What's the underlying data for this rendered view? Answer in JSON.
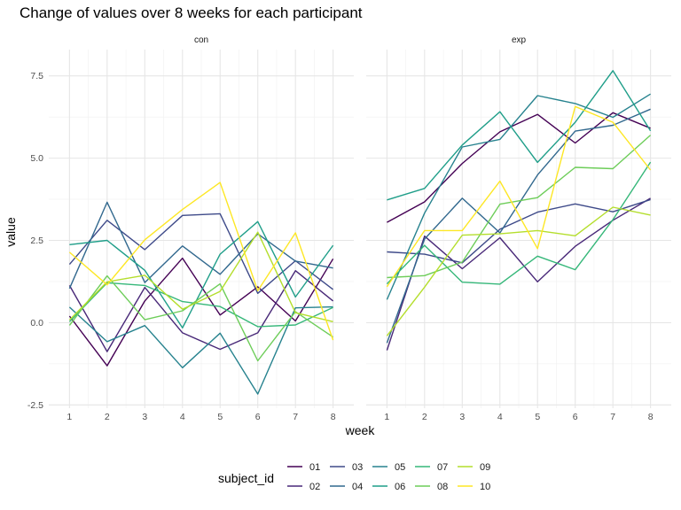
{
  "chart_data": {
    "type": "line",
    "title": "Change of values over 8 weeks for each participant",
    "xlabel": "week",
    "ylabel": "value",
    "x": [
      1,
      2,
      3,
      4,
      5,
      6,
      7,
      8
    ],
    "xlim": [
      0.45,
      8.55
    ],
    "ylim": [
      -2.6,
      8.3
    ],
    "y_ticks": [
      -2.5,
      0.0,
      2.5,
      5.0,
      7.5
    ],
    "y_tick_labels": [
      "-2.5",
      "0.0",
      "2.5",
      "5.0",
      "7.5"
    ],
    "grid": true,
    "legend_position": "bottom",
    "legend_title": "subject_id",
    "facets": [
      {
        "label": "con",
        "series": [
          {
            "name": "01",
            "color": "#440154",
            "values": [
              0.2,
              -1.31,
              0.66,
              1.96,
              0.23,
              1.09,
              0.05,
              1.94
            ]
          },
          {
            "name": "02",
            "color": "#482878",
            "values": [
              1.13,
              -0.88,
              1.07,
              -0.31,
              -0.81,
              -0.31,
              1.58,
              0.66
            ]
          },
          {
            "name": "03",
            "color": "#3E4A89",
            "values": [
              1.77,
              3.11,
              2.22,
              3.26,
              3.31,
              0.89,
              1.88,
              1.01
            ]
          },
          {
            "name": "04",
            "color": "#31688E",
            "values": [
              1.04,
              3.66,
              1.22,
              2.33,
              1.47,
              2.7,
              1.87,
              1.66
            ]
          },
          {
            "name": "05",
            "color": "#26828E",
            "values": [
              0.47,
              -0.58,
              -0.09,
              -1.37,
              -0.32,
              -2.17,
              0.45,
              0.48
            ]
          },
          {
            "name": "06",
            "color": "#1F9E89",
            "values": [
              2.37,
              2.5,
              1.59,
              -0.16,
              2.08,
              3.07,
              0.78,
              2.35
            ]
          },
          {
            "name": "07",
            "color": "#35B779",
            "values": [
              0.03,
              1.21,
              1.13,
              0.64,
              0.49,
              -0.12,
              -0.07,
              0.46
            ]
          },
          {
            "name": "08",
            "color": "#6DCD59",
            "values": [
              -0.08,
              1.42,
              0.09,
              0.36,
              1.18,
              -1.16,
              0.33,
              -0.44
            ]
          },
          {
            "name": "09",
            "color": "#B4DE2C",
            "values": [
              0.08,
              1.24,
              1.44,
              0.41,
              0.95,
              2.75,
              0.3,
              0.03
            ]
          },
          {
            "name": "10",
            "color": "#FDE725",
            "values": [
              2.14,
              1.15,
              2.52,
              3.44,
              4.26,
              0.97,
              2.73,
              -0.53
            ]
          }
        ]
      },
      {
        "label": "exp",
        "series": [
          {
            "name": "01",
            "color": "#440154",
            "values": [
              3.05,
              3.67,
              4.84,
              5.8,
              6.33,
              5.46,
              6.38,
              5.91
            ]
          },
          {
            "name": "02",
            "color": "#482878",
            "values": [
              -0.84,
              2.63,
              1.64,
              2.58,
              1.24,
              2.32,
              3.11,
              3.78
            ]
          },
          {
            "name": "03",
            "color": "#3E4A89",
            "values": [
              2.15,
              2.08,
              1.82,
              2.84,
              3.36,
              3.61,
              3.37,
              3.74
            ]
          },
          {
            "name": "04",
            "color": "#31688E",
            "values": [
              -0.62,
              2.54,
              3.78,
              2.73,
              4.49,
              5.82,
              6.0,
              6.49
            ]
          },
          {
            "name": "05",
            "color": "#26828E",
            "values": [
              0.7,
              3.33,
              5.34,
              5.57,
              6.9,
              6.66,
              6.24,
              6.95
            ]
          },
          {
            "name": "06",
            "color": "#1F9E89",
            "values": [
              3.73,
              4.08,
              5.4,
              6.41,
              4.87,
              6.09,
              7.66,
              5.83
            ]
          },
          {
            "name": "07",
            "color": "#35B779",
            "values": [
              1.18,
              2.35,
              1.23,
              1.17,
              2.02,
              1.61,
              3.13,
              4.88
            ]
          },
          {
            "name": "08",
            "color": "#6DCD59",
            "values": [
              1.37,
              1.43,
              1.84,
              3.6,
              3.8,
              4.72,
              4.68,
              5.7
            ]
          },
          {
            "name": "09",
            "color": "#B4DE2C",
            "values": [
              -0.4,
              1.08,
              2.66,
              2.7,
              2.8,
              2.64,
              3.51,
              3.27
            ]
          },
          {
            "name": "10",
            "color": "#FDE725",
            "values": [
              1.09,
              2.8,
              2.8,
              4.3,
              2.25,
              6.57,
              6.09,
              4.64
            ]
          }
        ]
      }
    ]
  }
}
